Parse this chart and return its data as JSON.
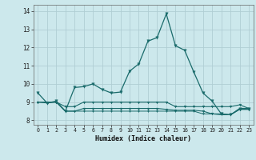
{
  "xlabel": "Humidex (Indice chaleur)",
  "bg_color": "#cce8ec",
  "grid_color": "#b0ced4",
  "line_color": "#1a6b6b",
  "xlim": [
    -0.5,
    23.5
  ],
  "ylim": [
    7.75,
    14.35
  ],
  "yticks": [
    8,
    9,
    10,
    11,
    12,
    13,
    14
  ],
  "xticks": [
    0,
    1,
    2,
    3,
    4,
    5,
    6,
    7,
    8,
    9,
    10,
    11,
    12,
    13,
    14,
    15,
    16,
    17,
    18,
    19,
    20,
    21,
    22,
    23
  ],
  "line1_x": [
    0,
    1,
    2,
    3,
    4,
    5,
    6,
    7,
    8,
    9,
    10,
    11,
    12,
    13,
    14,
    15,
    16,
    17,
    18,
    19,
    20,
    21,
    22,
    23
  ],
  "line1_y": [
    9.5,
    8.95,
    9.05,
    8.5,
    9.8,
    9.85,
    10.0,
    9.7,
    9.5,
    9.55,
    10.7,
    11.1,
    12.35,
    12.55,
    13.85,
    12.1,
    11.85,
    10.65,
    9.5,
    9.05,
    8.35,
    8.3,
    8.65,
    8.65
  ],
  "line2_x": [
    0,
    1,
    2,
    3,
    4,
    5,
    6,
    7,
    8,
    9,
    10,
    11,
    12,
    13,
    14,
    15,
    16,
    17,
    18,
    19,
    20,
    21,
    22,
    23
  ],
  "line2_y": [
    9.0,
    9.0,
    9.0,
    8.75,
    8.75,
    9.0,
    9.0,
    9.0,
    9.0,
    9.0,
    9.0,
    9.0,
    9.0,
    9.0,
    9.0,
    8.75,
    8.75,
    8.75,
    8.75,
    8.75,
    8.75,
    8.75,
    8.85,
    8.65
  ],
  "line3_x": [
    0,
    1,
    2,
    3,
    4,
    5,
    6,
    7,
    8,
    9,
    10,
    11,
    12,
    13,
    14,
    15,
    16,
    17,
    18,
    19,
    20,
    21,
    22,
    23
  ],
  "line3_y": [
    9.0,
    8.95,
    9.0,
    8.5,
    8.5,
    8.65,
    8.65,
    8.65,
    8.65,
    8.65,
    8.65,
    8.65,
    8.65,
    8.65,
    8.6,
    8.55,
    8.55,
    8.55,
    8.5,
    8.35,
    8.35,
    8.3,
    8.6,
    8.6
  ],
  "line4_x": [
    0,
    1,
    2,
    3,
    4,
    5,
    6,
    7,
    8,
    9,
    10,
    11,
    12,
    13,
    14,
    15,
    16,
    17,
    18,
    19,
    20,
    21,
    22,
    23
  ],
  "line4_y": [
    9.0,
    9.0,
    9.0,
    8.5,
    8.5,
    8.5,
    8.5,
    8.5,
    8.5,
    8.5,
    8.5,
    8.5,
    8.5,
    8.5,
    8.5,
    8.5,
    8.5,
    8.5,
    8.35,
    8.35,
    8.3,
    8.3,
    8.6,
    8.6
  ]
}
